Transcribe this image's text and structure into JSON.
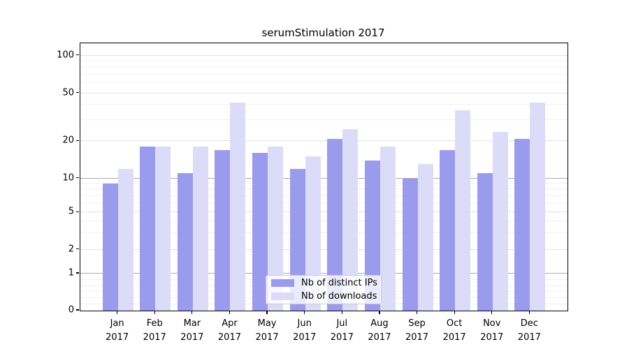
{
  "chart_data": {
    "type": "bar",
    "title": "serumStimulation 2017",
    "categories": [
      "Jan",
      "Feb",
      "Mar",
      "Apr",
      "May",
      "Jun",
      "Jul",
      "Aug",
      "Sep",
      "Oct",
      "Nov",
      "Dec"
    ],
    "category_year": "2017",
    "series": [
      {
        "name": "Nb of distinct IPs",
        "color": "#9b9bee",
        "values": [
          9,
          18,
          11,
          17,
          16,
          12,
          21,
          14,
          10,
          17,
          11,
          21
        ]
      },
      {
        "name": "Nb of downloads",
        "color": "#dcdcf8",
        "values": [
          12,
          18,
          18,
          42,
          18,
          15,
          25,
          18,
          13,
          36,
          24,
          42
        ]
      }
    ],
    "xlabel": "",
    "ylabel": "",
    "y_ticks": [
      0,
      1,
      2,
      5,
      10,
      20,
      50,
      100
    ],
    "y_minor_ticks": [
      3,
      4,
      6,
      7,
      8,
      9,
      30,
      40,
      60,
      70,
      80,
      90
    ],
    "y_scale": "log-like (symlog, compressed below 10)",
    "ylim": [
      0,
      125
    ],
    "grid": true,
    "legend_position": "lower center"
  }
}
